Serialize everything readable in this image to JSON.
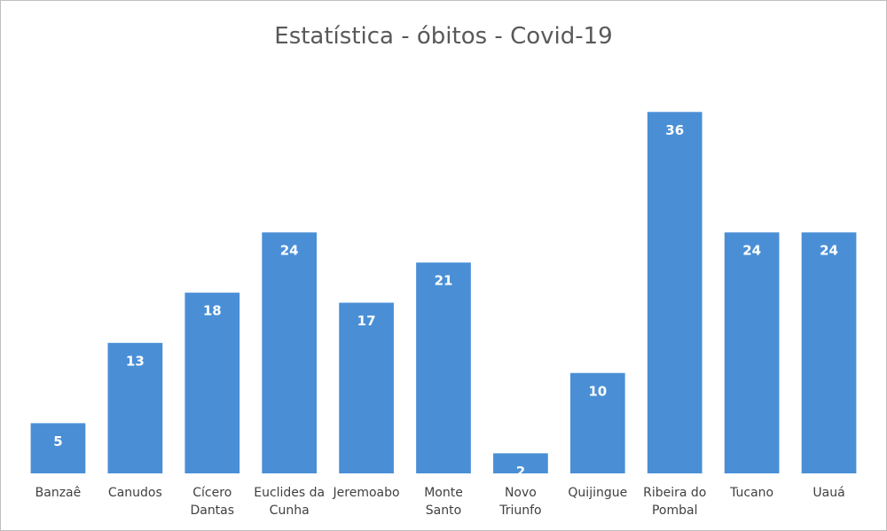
{
  "chart_data": {
    "type": "bar",
    "title": "Estatística - óbitos -  Covid-19",
    "categories": [
      "Banzaê",
      "Canudos",
      "Cícero Dantas",
      "Euclides da Cunha",
      "Jeremoabo",
      "Monte Santo",
      "Novo Triunfo",
      "Quijingue",
      "Ribeira do Pombal",
      "Tucano",
      "Uauá"
    ],
    "values": [
      5,
      13,
      18,
      24,
      17,
      21,
      2,
      10,
      36,
      24,
      24
    ],
    "color": "#4a8fd6",
    "ylim": [
      0,
      40
    ]
  }
}
